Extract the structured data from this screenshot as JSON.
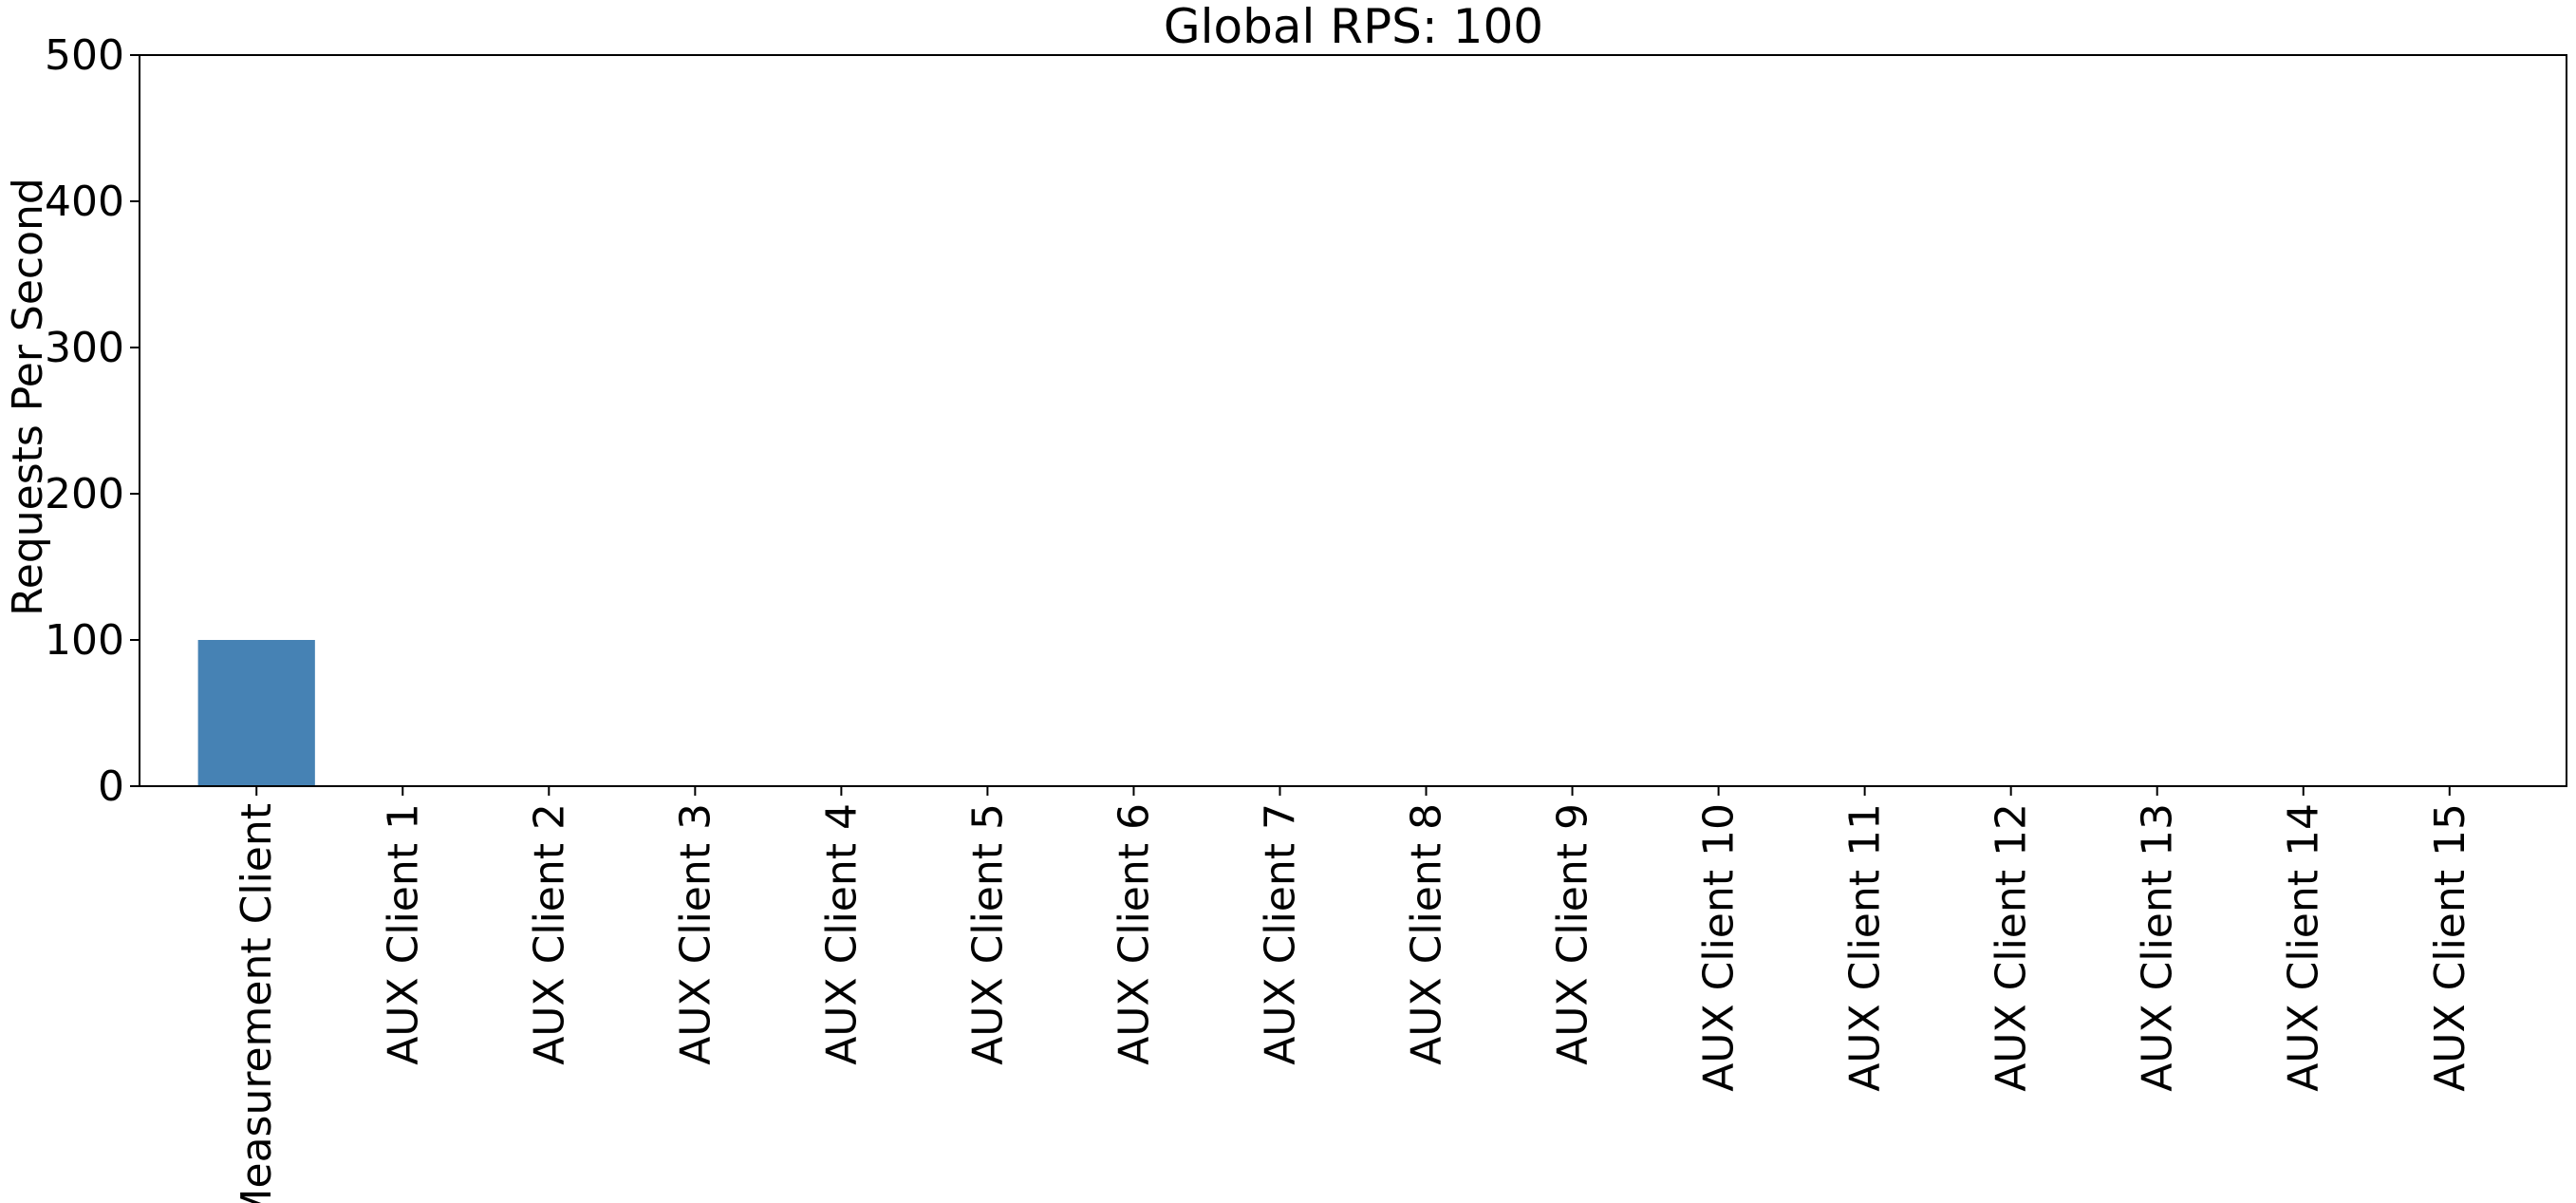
{
  "chart_data": {
    "type": "bar",
    "title": "Global RPS: 100",
    "xlabel": "",
    "ylabel": "Requests Per Second",
    "categories": [
      "Measurement Client",
      "AUX Client 1",
      "AUX Client 2",
      "AUX Client 3",
      "AUX Client 4",
      "AUX Client 5",
      "AUX Client 6",
      "AUX Client 7",
      "AUX Client 8",
      "AUX Client 9",
      "AUX Client 10",
      "AUX Client 11",
      "AUX Client 12",
      "AUX Client 13",
      "AUX Client 14",
      "AUX Client 15"
    ],
    "values": [
      100,
      0,
      0,
      0,
      0,
      0,
      0,
      0,
      0,
      0,
      0,
      0,
      0,
      0,
      0,
      0
    ],
    "ylim": [
      0,
      500
    ],
    "yticks": [
      0,
      100,
      200,
      300,
      400,
      500
    ],
    "ytick_labels": [
      "0",
      "100",
      "200",
      "300",
      "400",
      "500"
    ],
    "grid": false,
    "bar_color": "#4682b4"
  }
}
